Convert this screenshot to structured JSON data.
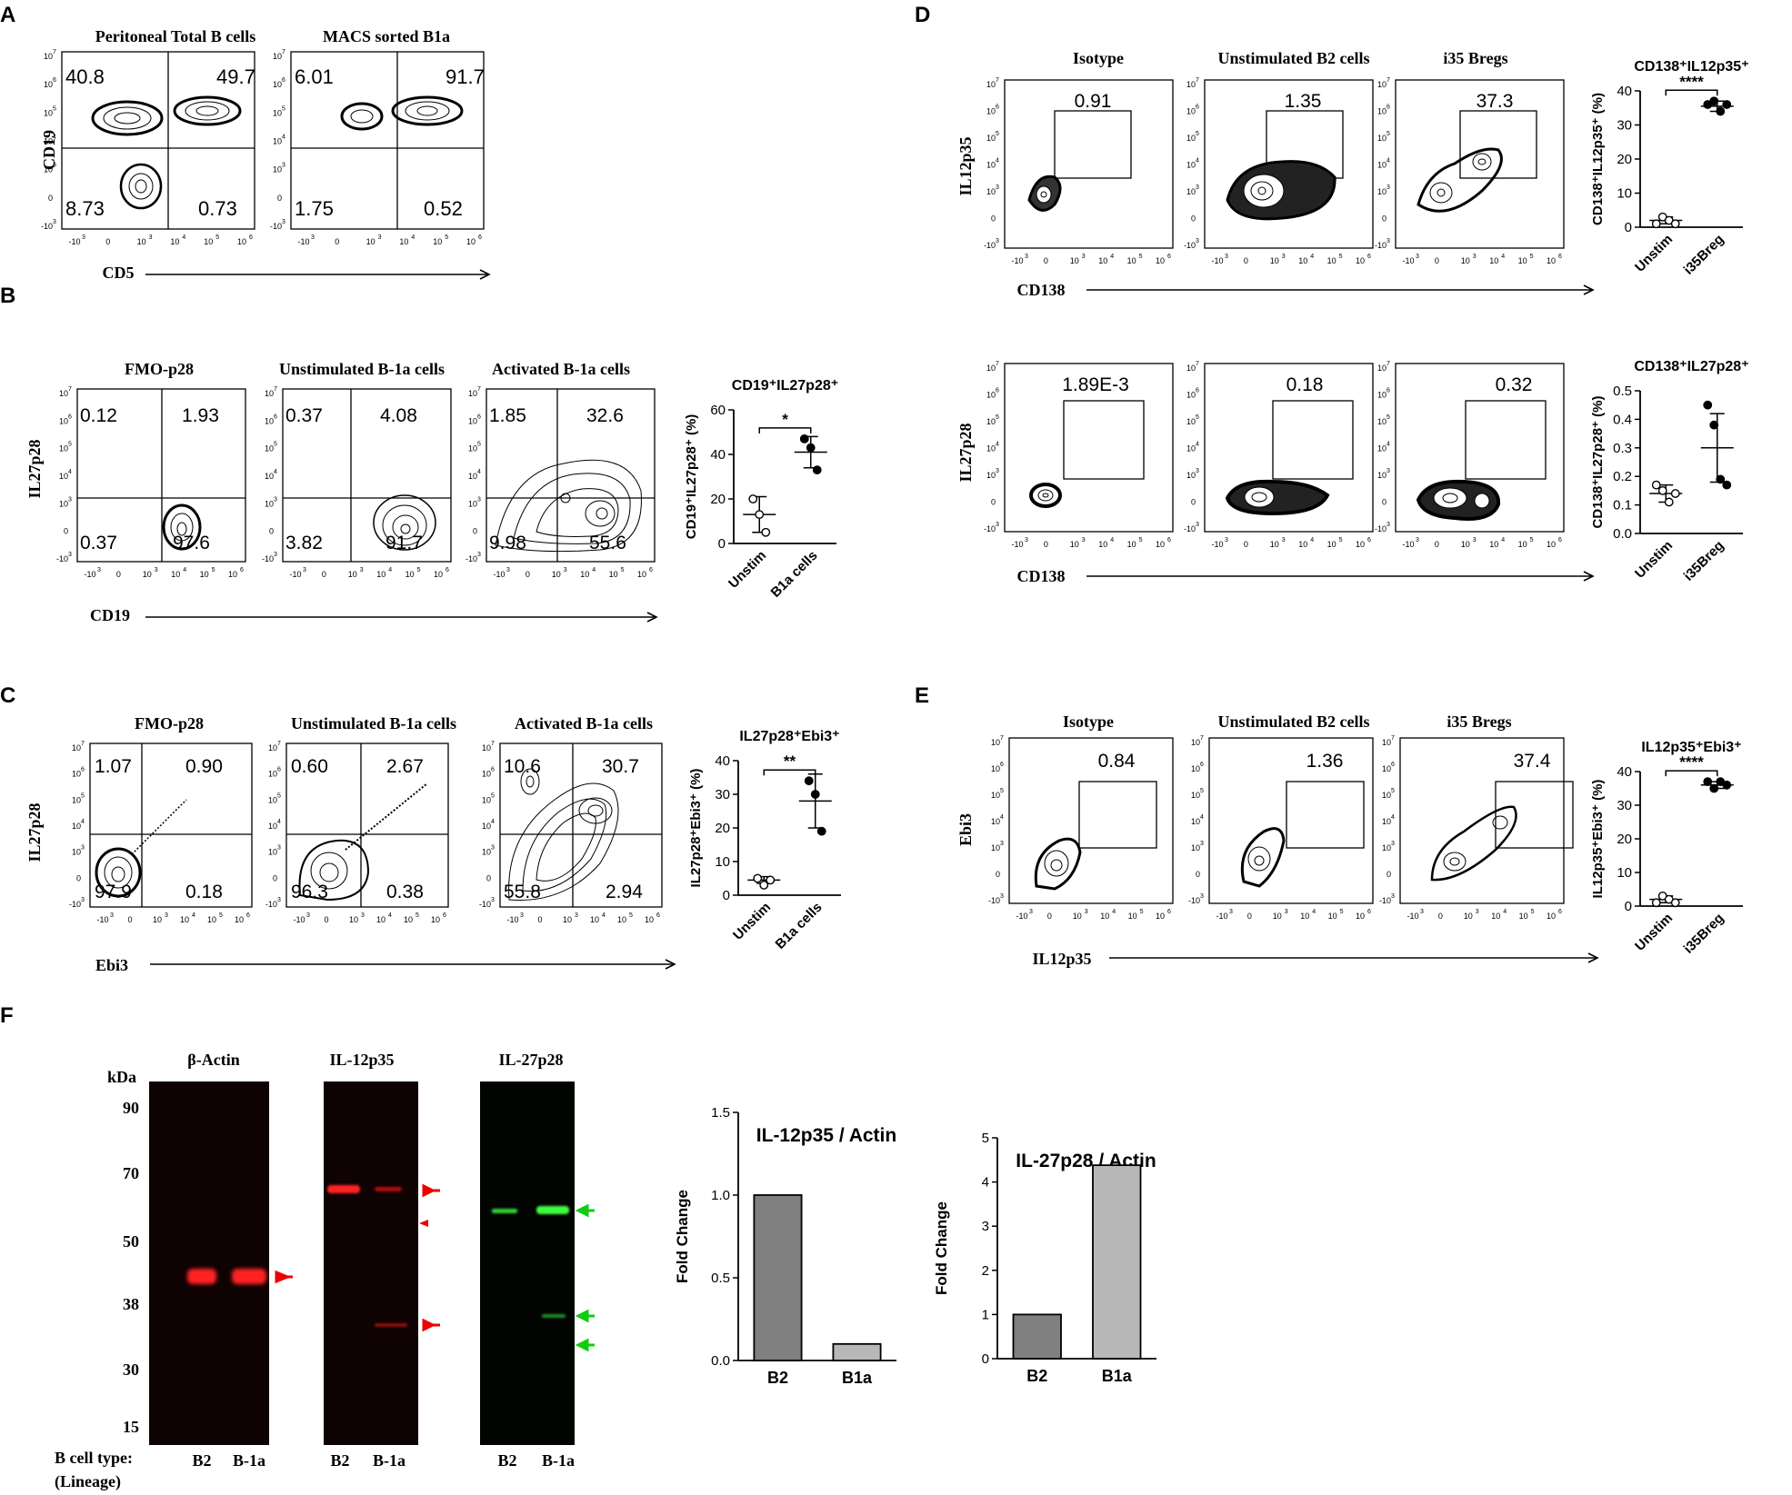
{
  "panels": {
    "A": {
      "letter": "A",
      "ylabel": "CD19",
      "xlabel": "CD5",
      "plots": [
        {
          "title": "Peritoneal Total B cells",
          "q": [
            "40.8",
            "49.7",
            "8.73",
            "0.73"
          ]
        },
        {
          "title": "MACS sorted B1a",
          "q": [
            "6.01",
            "91.7",
            "1.75",
            "0.52"
          ]
        }
      ]
    },
    "B": {
      "letter": "B",
      "ylabel": "IL27p28",
      "xlabel": "CD19",
      "plots": [
        {
          "title": "FMO-p28",
          "q": [
            "0.12",
            "1.93",
            "0.37",
            "97.6"
          ]
        },
        {
          "title": "Unstimulated B-1a cells",
          "q": [
            "0.37",
            "4.08",
            "3.82",
            "91.7"
          ]
        },
        {
          "title": "Activated B-1a cells",
          "q": [
            "1.85",
            "32.6",
            "9.98",
            "55.6"
          ]
        }
      ]
    },
    "C": {
      "letter": "C",
      "ylabel": "IL27p28",
      "xlabel": "Ebi3",
      "plots": [
        {
          "title": "FMO-p28",
          "q": [
            "1.07",
            "0.90",
            "97.9",
            "0.18"
          ]
        },
        {
          "title": "Unstimulated B-1a cells",
          "q": [
            "0.60",
            "2.67",
            "96.3",
            "0.38"
          ]
        },
        {
          "title": "Activated B-1a cells",
          "q": [
            "10.6",
            "30.7",
            "55.8",
            "2.94"
          ]
        }
      ]
    },
    "D": {
      "letter": "D",
      "rows": [
        {
          "ylabel": "IL12p35",
          "xlabel": "CD138",
          "titles": [
            "Isotype",
            "Unstimulated B2 cells",
            "i35 Bregs"
          ],
          "gates": [
            "0.91",
            "1.35",
            "37.3"
          ]
        },
        {
          "ylabel": "IL27p28",
          "xlabel": "CD138",
          "titles": [
            "",
            "",
            ""
          ],
          "gates": [
            "1.89E-3",
            "0.18",
            "0.32"
          ]
        }
      ]
    },
    "E": {
      "letter": "E",
      "ylabel": "Ebi3",
      "xlabel": "IL12p35",
      "titles": [
        "Isotype",
        "Unstimulated B2 cells",
        "i35 Bregs"
      ],
      "gates": [
        "0.84",
        "1.36",
        "37.4"
      ]
    },
    "F": {
      "letter": "F",
      "kda_label": "kDa",
      "markers": [
        "90",
        "70",
        "50",
        "38",
        "30",
        "15"
      ],
      "blots": [
        {
          "title": "β-Actin",
          "lanes": [
            "B2",
            "B-1a"
          ]
        },
        {
          "title": "IL-12p35",
          "lanes": [
            "B2",
            "B-1a"
          ]
        },
        {
          "title": "IL-27p28",
          "lanes": [
            "B2",
            "B-1a"
          ]
        }
      ],
      "lineage_label_1": "B cell type:",
      "lineage_label_2": "(Lineage)"
    },
    "axis_ticks": {
      "y": [
        "10",
        "10",
        "10",
        "10",
        "10",
        "0",
        "-10"
      ],
      "y_exp": [
        "7",
        "6",
        "5",
        "4",
        "3",
        "",
        "3"
      ],
      "x": [
        "-10",
        "0",
        "10",
        "10",
        "10",
        "10"
      ],
      "x_exp": [
        "3",
        "",
        "3",
        "4",
        "5",
        "6"
      ]
    }
  },
  "chart_data": [
    {
      "type": "scatter",
      "title": "CD19⁺IL27p28⁺",
      "ylabel": "CD19⁺IL27p28⁺ (%)",
      "categories": [
        "Unstim",
        "B1a cells"
      ],
      "ylim": [
        0,
        60
      ],
      "yticks": [
        "0",
        "20",
        "40",
        "60"
      ],
      "points": [
        [
          20,
          13,
          5
        ],
        [
          47,
          43,
          33
        ]
      ],
      "means": [
        13,
        41
      ],
      "sd": [
        8,
        7
      ],
      "significance": "*"
    },
    {
      "type": "scatter",
      "title": "IL27p28⁺Ebi3⁺",
      "ylabel": "IL27p28⁺Ebi3⁺ (%)",
      "categories": [
        "Unstim",
        "B1a cells"
      ],
      "ylim": [
        0,
        40
      ],
      "yticks": [
        "0",
        "10",
        "20",
        "30",
        "40"
      ],
      "points": [
        [
          5,
          3,
          4.5
        ],
        [
          34,
          30,
          19
        ]
      ],
      "means": [
        4.5,
        28
      ],
      "sd": [
        1,
        8
      ],
      "significance": "**"
    },
    {
      "type": "scatter",
      "title": "CD138⁺IL12p35⁺",
      "ylabel": "CD138⁺IL12p35⁺ (%)",
      "categories": [
        "Unstim",
        "i35Breg"
      ],
      "ylim": [
        0,
        40
      ],
      "yticks": [
        "0",
        "10",
        "20",
        "30",
        "40"
      ],
      "points": [
        [
          1,
          3,
          2,
          1
        ],
        [
          36,
          37,
          34,
          36
        ]
      ],
      "means": [
        2,
        35.5
      ],
      "sd": [
        1,
        1.5
      ],
      "significance": "****"
    },
    {
      "type": "scatter",
      "title": "CD138⁺IL27p28⁺",
      "ylabel": "CD138⁺IL27p28⁺ (%)",
      "categories": [
        "Unstim",
        "i35Breg"
      ],
      "ylim": [
        0,
        0.5
      ],
      "yticks": [
        "0.0",
        "0.1",
        "0.2",
        "0.3",
        "0.4",
        "0.5"
      ],
      "points": [
        [
          0.17,
          0.15,
          0.11,
          0.14
        ],
        [
          0.45,
          0.38,
          0.19,
          0.17
        ]
      ],
      "means": [
        0.14,
        0.3
      ],
      "sd": [
        0.03,
        0.12
      ],
      "significance": ""
    },
    {
      "type": "scatter",
      "title": "IL12p35⁺Ebi3⁺",
      "ylabel": "IL12p35⁺Ebi3⁺ (%)",
      "categories": [
        "Unstim",
        "i35Breg"
      ],
      "ylim": [
        0,
        40
      ],
      "yticks": [
        "0",
        "10",
        "20",
        "30",
        "40"
      ],
      "points": [
        [
          1,
          3,
          2,
          1
        ],
        [
          37,
          35,
          37,
          36
        ]
      ],
      "means": [
        2,
        36
      ],
      "sd": [
        1,
        1
      ],
      "significance": "****"
    },
    {
      "type": "bar",
      "title": "IL-12p35 / Actin",
      "ylabel": "Fold Change",
      "categories": [
        "B2",
        "B1a"
      ],
      "values": [
        1.0,
        0.1
      ],
      "ylim": [
        0,
        1.5
      ],
      "yticks": [
        "0.0",
        "0.5",
        "1.0",
        "1.5"
      ],
      "colors": [
        "#808080",
        "#b8b8b8"
      ]
    },
    {
      "type": "bar",
      "title": "IL-27p28 / Actin",
      "ylabel": "Fold Change",
      "categories": [
        "B2",
        "B1a"
      ],
      "values": [
        1.0,
        4.38
      ],
      "ylim": [
        0,
        5
      ],
      "yticks": [
        "0",
        "1",
        "2",
        "3",
        "4",
        "5"
      ],
      "colors": [
        "#808080",
        "#b8b8b8"
      ]
    }
  ]
}
